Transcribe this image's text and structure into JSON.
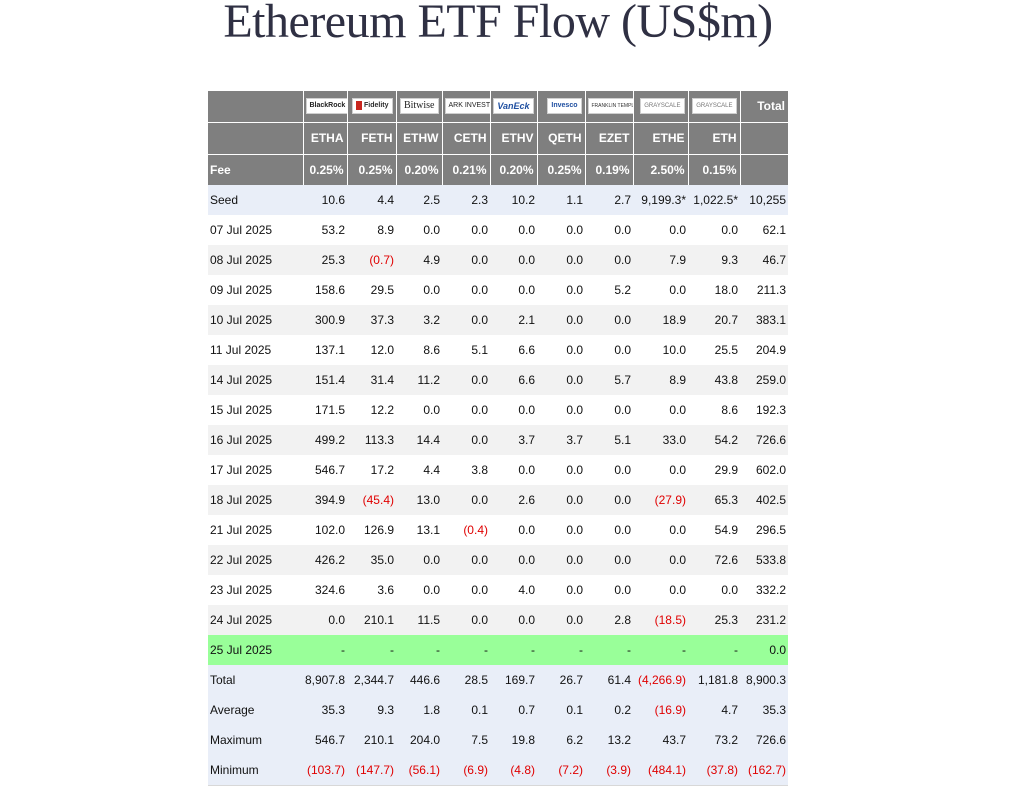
{
  "title": "Ethereum ETF Flow (US$m)",
  "header": {
    "issuers": [
      {
        "logo_icon": "blackrock-logo",
        "text": "BlackRock"
      },
      {
        "logo_icon": "fidelity-logo",
        "text": "Fidelity"
      },
      {
        "logo_icon": "bitwise-logo",
        "text": "Bitwise"
      },
      {
        "logo_icon": "ark-invest-logo",
        "text": "ARK INVEST"
      },
      {
        "logo_icon": "vaneck-logo",
        "text": "VanEck"
      },
      {
        "logo_icon": "invesco-logo",
        "text": "Invesco"
      },
      {
        "logo_icon": "franklin-templeton-logo",
        "text": "FRANKLIN TEMPLETON"
      },
      {
        "logo_icon": "grayscale-logo",
        "text": "GRAYSCALE"
      },
      {
        "logo_icon": "grayscale-logo",
        "text": "GRAYSCALE"
      }
    ],
    "total_label": "Total",
    "tickers": [
      "ETHA",
      "FETH",
      "ETHW",
      "CETH",
      "ETHV",
      "QETH",
      "EZET",
      "ETHE",
      "ETH"
    ],
    "fee_label": "Fee",
    "fees": [
      "0.25%",
      "0.25%",
      "0.20%",
      "0.21%",
      "0.20%",
      "0.25%",
      "0.19%",
      "2.50%",
      "0.15%"
    ]
  },
  "colors": {
    "header_bg": "#7f7f7f",
    "negative_text": "#e00000",
    "highlight_row": "#99ff99",
    "stat_row_bg": "#e9eef8",
    "alt_row_bg": "#f2f2f2",
    "title_color": "#2f3043"
  },
  "rows": [
    {
      "label": "Seed",
      "type": "seed",
      "values": [
        "10.6",
        "4.4",
        "2.5",
        "2.3",
        "10.2",
        "1.1",
        "2.7",
        "9,199.3*",
        "1,022.5*",
        "10,255"
      ]
    },
    {
      "label": "07 Jul 2025",
      "type": "plain",
      "values": [
        "53.2",
        "8.9",
        "0.0",
        "0.0",
        "0.0",
        "0.0",
        "0.0",
        "0.0",
        "0.0",
        "62.1"
      ]
    },
    {
      "label": "08 Jul 2025",
      "type": "shade",
      "values": [
        "25.3",
        "(0.7)",
        "4.9",
        "0.0",
        "0.0",
        "0.0",
        "0.0",
        "7.9",
        "9.3",
        "46.7"
      ]
    },
    {
      "label": "09 Jul 2025",
      "type": "plain",
      "values": [
        "158.6",
        "29.5",
        "0.0",
        "0.0",
        "0.0",
        "0.0",
        "5.2",
        "0.0",
        "18.0",
        "211.3"
      ]
    },
    {
      "label": "10 Jul 2025",
      "type": "shade",
      "values": [
        "300.9",
        "37.3",
        "3.2",
        "0.0",
        "2.1",
        "0.0",
        "0.0",
        "18.9",
        "20.7",
        "383.1"
      ]
    },
    {
      "label": "11 Jul 2025",
      "type": "plain",
      "values": [
        "137.1",
        "12.0",
        "8.6",
        "5.1",
        "6.6",
        "0.0",
        "0.0",
        "10.0",
        "25.5",
        "204.9"
      ]
    },
    {
      "label": "14 Jul 2025",
      "type": "shade",
      "values": [
        "151.4",
        "31.4",
        "11.2",
        "0.0",
        "6.6",
        "0.0",
        "5.7",
        "8.9",
        "43.8",
        "259.0"
      ]
    },
    {
      "label": "15 Jul 2025",
      "type": "plain",
      "values": [
        "171.5",
        "12.2",
        "0.0",
        "0.0",
        "0.0",
        "0.0",
        "0.0",
        "0.0",
        "8.6",
        "192.3"
      ]
    },
    {
      "label": "16 Jul 2025",
      "type": "shade",
      "values": [
        "499.2",
        "113.3",
        "14.4",
        "0.0",
        "3.7",
        "3.7",
        "5.1",
        "33.0",
        "54.2",
        "726.6"
      ]
    },
    {
      "label": "17 Jul 2025",
      "type": "plain",
      "values": [
        "546.7",
        "17.2",
        "4.4",
        "3.8",
        "0.0",
        "0.0",
        "0.0",
        "0.0",
        "29.9",
        "602.0"
      ]
    },
    {
      "label": "18 Jul 2025",
      "type": "shade",
      "values": [
        "394.9",
        "(45.4)",
        "13.0",
        "0.0",
        "2.6",
        "0.0",
        "0.0",
        "(27.9)",
        "65.3",
        "402.5"
      ]
    },
    {
      "label": "21 Jul 2025",
      "type": "plain",
      "values": [
        "102.0",
        "126.9",
        "13.1",
        "(0.4)",
        "0.0",
        "0.0",
        "0.0",
        "0.0",
        "54.9",
        "296.5"
      ]
    },
    {
      "label": "22 Jul 2025",
      "type": "shade",
      "values": [
        "426.2",
        "35.0",
        "0.0",
        "0.0",
        "0.0",
        "0.0",
        "0.0",
        "0.0",
        "72.6",
        "533.8"
      ]
    },
    {
      "label": "23 Jul 2025",
      "type": "plain",
      "values": [
        "324.6",
        "3.6",
        "0.0",
        "0.0",
        "4.0",
        "0.0",
        "0.0",
        "0.0",
        "0.0",
        "332.2"
      ]
    },
    {
      "label": "24 Jul 2025",
      "type": "shade",
      "values": [
        "0.0",
        "210.1",
        "11.5",
        "0.0",
        "0.0",
        "0.0",
        "2.8",
        "(18.5)",
        "25.3",
        "231.2"
      ]
    },
    {
      "label": "25 Jul 2025",
      "type": "today",
      "values": [
        "-",
        "-",
        "-",
        "-",
        "-",
        "-",
        "-",
        "-",
        "-",
        "0.0"
      ]
    },
    {
      "label": "Total",
      "type": "stat",
      "values": [
        "8,907.8",
        "2,344.7",
        "446.6",
        "28.5",
        "169.7",
        "26.7",
        "61.4",
        "(4,266.9)",
        "1,181.8",
        "8,900.3"
      ]
    },
    {
      "label": "Average",
      "type": "stat",
      "values": [
        "35.3",
        "9.3",
        "1.8",
        "0.1",
        "0.7",
        "0.1",
        "0.2",
        "(16.9)",
        "4.7",
        "35.3"
      ]
    },
    {
      "label": "Maximum",
      "type": "stat",
      "values": [
        "546.7",
        "210.1",
        "204.0",
        "7.5",
        "19.8",
        "6.2",
        "13.2",
        "43.7",
        "73.2",
        "726.6"
      ]
    },
    {
      "label": "Minimum",
      "type": "stat",
      "values": [
        "(103.7)",
        "(147.7)",
        "(56.1)",
        "(6.9)",
        "(4.8)",
        "(7.2)",
        "(3.9)",
        "(484.1)",
        "(37.8)",
        "(162.7)"
      ]
    }
  ]
}
